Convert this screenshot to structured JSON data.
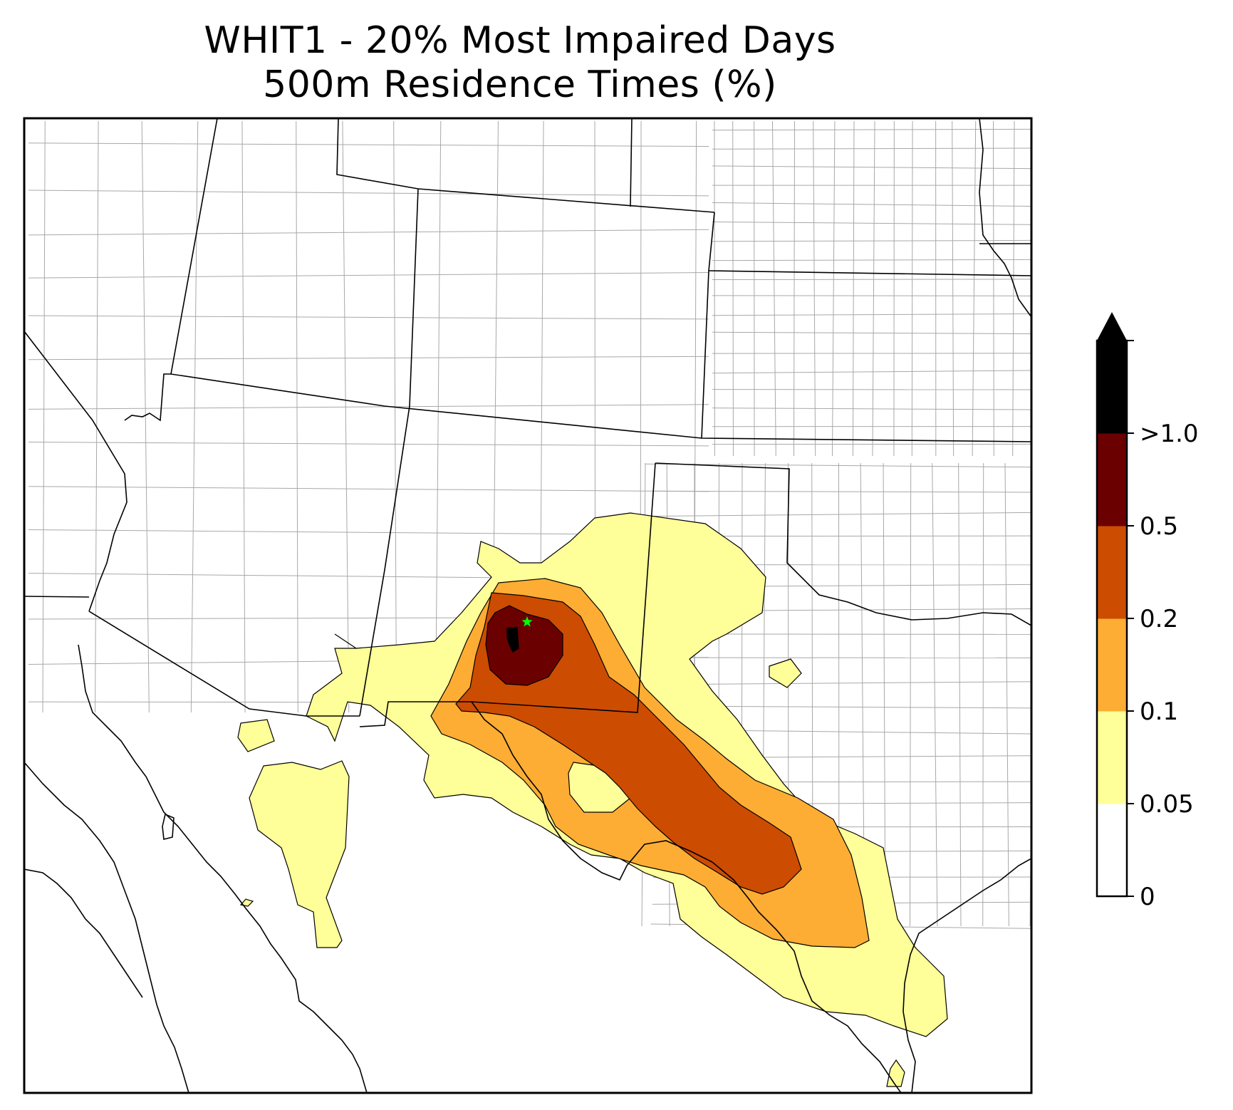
{
  "title": {
    "line1": "WHIT1 - 20% Most Impaired Days",
    "line2": "500m Residence Times (%)"
  },
  "colors": {
    "level_0_005": "#ffffff",
    "level_005_01": "#ffff99",
    "level_01_02": "#fdad34",
    "level_02_05": "#cc4c02",
    "level_05_1": "#6b0000",
    "level_gt1": "#000000",
    "state_border": "#000000",
    "county_border": "#a8a8a8",
    "site_marker": "#00ff00"
  },
  "colorbar": {
    "tick_labels": [
      "0",
      "0.05",
      "0.1",
      "0.2",
      "0.5",
      ">1.0"
    ],
    "extend": "max"
  },
  "marker": {
    "icon": "star-icon",
    "label": ""
  }
}
